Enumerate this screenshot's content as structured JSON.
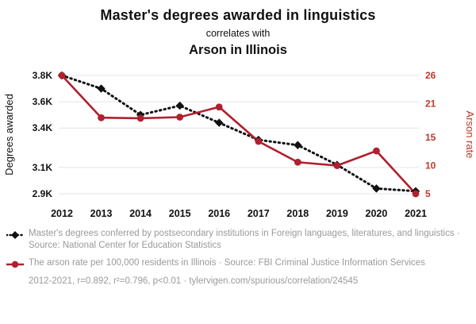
{
  "header": {
    "title": "Master's degrees awarded in linguistics",
    "subtitle": "correlates with",
    "correlate": "Arson in Illinois"
  },
  "colors": {
    "degrees_line": "#111111",
    "arson_line": "#b0202e",
    "arson_text": "#c0392b",
    "grid": "#e4e4e4",
    "legend_text": "#9a9a9a"
  },
  "chart_data": {
    "type": "line",
    "title": "Master's degrees awarded in linguistics correlates with Arson in Illinois",
    "x": [
      2012,
      2013,
      2014,
      2015,
      2016,
      2017,
      2018,
      2019,
      2020,
      2021
    ],
    "series": [
      {
        "name": "Master's degrees conferred by postsecondary institutions in Foreign languages, literatures, and linguistics",
        "axis": "left_axis",
        "color": "#111111",
        "style": "dotted",
        "marker": "diamond",
        "values": [
          3800,
          3700,
          3500,
          3570,
          3440,
          3310,
          3270,
          3120,
          2940,
          2920
        ]
      },
      {
        "name": "The arson rate per 100,000 residents in Illinois",
        "axis": "right_axis",
        "color": "#b0202e",
        "style": "solid",
        "marker": "circle",
        "values": [
          26,
          18.5,
          18.4,
          18.6,
          20.4,
          14.3,
          10.6,
          10.0,
          12.6,
          5.0
        ]
      }
    ],
    "left_axis": {
      "label": "Degrees awarded",
      "min": 2900,
      "max": 3800,
      "ticks": [
        {
          "v": 2900,
          "label": "2.9K"
        },
        {
          "v": 3100,
          "label": "3.1K"
        },
        {
          "v": 3400,
          "label": "3.4K"
        },
        {
          "v": 3600,
          "label": "3.6K"
        },
        {
          "v": 3800,
          "label": "3.8K"
        }
      ]
    },
    "right_axis": {
      "label": "Arson rate",
      "min": 5,
      "max": 26,
      "ticks": [
        {
          "v": 5,
          "label": "5"
        },
        {
          "v": 10,
          "label": "10"
        },
        {
          "v": 15,
          "label": "15"
        },
        {
          "v": 21,
          "label": "21"
        },
        {
          "v": 26,
          "label": "26"
        }
      ]
    },
    "legend_position": "bottom",
    "grid": "horizontal"
  },
  "legend": {
    "items": [
      {
        "text": "Master's degrees conferred by postsecondary institutions in Foreign languages, literatures, and linguistics · Source: National Center for Education Statistics"
      },
      {
        "text": "The arson rate per 100,000 residents in Illinois · Source: FBI Criminal Justice Information Services"
      }
    ]
  },
  "footer": {
    "text": "2012-2021, r=0.892, r²=0.796, p<0.01 · tylervigen.com/spurious/correlation/24545"
  }
}
